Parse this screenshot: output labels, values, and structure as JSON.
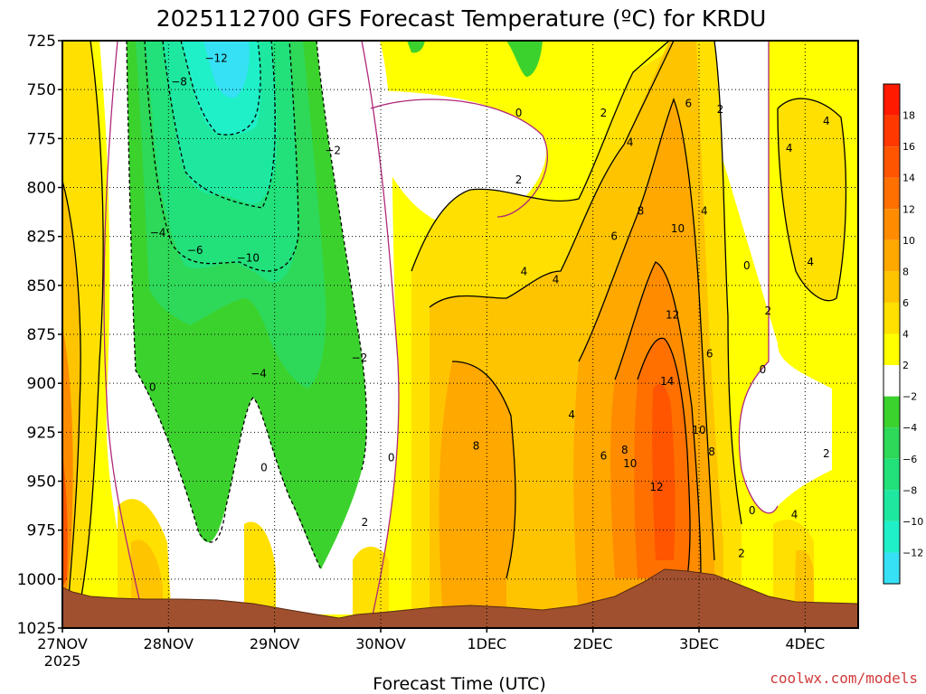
{
  "chart_data": {
    "type": "heatmap",
    "title": "2025112700 GFS Forecast Temperature (ºC) for KRDU",
    "xlabel": "Forecast Time (UTC)",
    "x_ticks": [
      "27NOV",
      "28NOV",
      "29NOV",
      "30NOV",
      "1DEC",
      "2DEC",
      "3DEC",
      "4DEC"
    ],
    "x_tick_year": "2025",
    "y_ticks": [
      725,
      750,
      775,
      800,
      825,
      850,
      875,
      900,
      925,
      950,
      975,
      1000,
      1025
    ],
    "ylim": [
      1025,
      725
    ],
    "xlim": [
      0,
      7.5
    ],
    "grid": true,
    "credit": "coolwx.com/models",
    "legend": {
      "placement": "right",
      "levels": [
        -14,
        -12,
        -10,
        -8,
        -6,
        -4,
        -2,
        2,
        4,
        6,
        8,
        10,
        12,
        14,
        16,
        18,
        20
      ],
      "colors": [
        "#36e0f5",
        "#1ff0c8",
        "#1ee8a0",
        "#22e07a",
        "#2ed858",
        "#3cd22e",
        "#ffffff",
        "#ffff00",
        "#ffe000",
        "#ffc400",
        "#ffa800",
        "#ff8c00",
        "#ff7000",
        "#ff5400",
        "#ff3800",
        "#ff1a00"
      ],
      "labels": [
        "−12",
        "−10",
        "−8",
        "−6",
        "−4",
        "−2",
        "2",
        "4",
        "6",
        "8",
        "10",
        "12",
        "14",
        "16",
        "18"
      ]
    },
    "contour_labels": [
      {
        "x": 1.45,
        "p": 734,
        "t": "−12"
      },
      {
        "x": 1.1,
        "p": 746,
        "t": "−8"
      },
      {
        "x": 2.55,
        "p": 781,
        "t": "−2"
      },
      {
        "x": 0.9,
        "p": 823,
        "t": "−4"
      },
      {
        "x": 1.25,
        "p": 832,
        "t": "−6"
      },
      {
        "x": 1.75,
        "p": 836,
        "t": "−10"
      },
      {
        "x": 2.8,
        "p": 887,
        "t": "−2"
      },
      {
        "x": 1.85,
        "p": 895,
        "t": "−4"
      },
      {
        "x": 0.85,
        "p": 902,
        "t": "0"
      },
      {
        "x": 1.9,
        "p": 943,
        "t": "0"
      },
      {
        "x": 3.1,
        "p": 938,
        "t": "0"
      },
      {
        "x": 2.85,
        "p": 971,
        "t": "2"
      },
      {
        "x": 4.3,
        "p": 762,
        "t": "0"
      },
      {
        "x": 4.3,
        "p": 796,
        "t": "2"
      },
      {
        "x": 5.1,
        "p": 762,
        "t": "2"
      },
      {
        "x": 5.35,
        "p": 777,
        "t": "4"
      },
      {
        "x": 5.9,
        "p": 757,
        "t": "6"
      },
      {
        "x": 6.2,
        "p": 760,
        "t": "2"
      },
      {
        "x": 6.85,
        "p": 780,
        "t": "4"
      },
      {
        "x": 7.2,
        "p": 766,
        "t": "4"
      },
      {
        "x": 5.45,
        "p": 812,
        "t": "8"
      },
      {
        "x": 6.05,
        "p": 812,
        "t": "4"
      },
      {
        "x": 5.2,
        "p": 825,
        "t": "6"
      },
      {
        "x": 5.8,
        "p": 821,
        "t": "10"
      },
      {
        "x": 6.45,
        "p": 840,
        "t": "0"
      },
      {
        "x": 7.05,
        "p": 838,
        "t": "4"
      },
      {
        "x": 4.35,
        "p": 843,
        "t": "4"
      },
      {
        "x": 4.65,
        "p": 847,
        "t": "4"
      },
      {
        "x": 6.65,
        "p": 863,
        "t": "2"
      },
      {
        "x": 5.75,
        "p": 865,
        "t": "12"
      },
      {
        "x": 6.1,
        "p": 885,
        "t": "6"
      },
      {
        "x": 6.6,
        "p": 893,
        "t": "0"
      },
      {
        "x": 5.7,
        "p": 899,
        "t": "14"
      },
      {
        "x": 4.8,
        "p": 916,
        "t": "4"
      },
      {
        "x": 3.9,
        "p": 932,
        "t": "8"
      },
      {
        "x": 5.3,
        "p": 934,
        "t": "8"
      },
      {
        "x": 5.1,
        "p": 937,
        "t": "6"
      },
      {
        "x": 5.35,
        "p": 941,
        "t": "10"
      },
      {
        "x": 6.0,
        "p": 924,
        "t": "10"
      },
      {
        "x": 6.12,
        "p": 935,
        "t": "8"
      },
      {
        "x": 7.2,
        "p": 936,
        "t": "2"
      },
      {
        "x": 5.6,
        "p": 953,
        "t": "12"
      },
      {
        "x": 6.5,
        "p": 965,
        "t": "0"
      },
      {
        "x": 6.9,
        "p": 967,
        "t": "4"
      },
      {
        "x": 6.4,
        "p": 987,
        "t": "2"
      }
    ]
  }
}
